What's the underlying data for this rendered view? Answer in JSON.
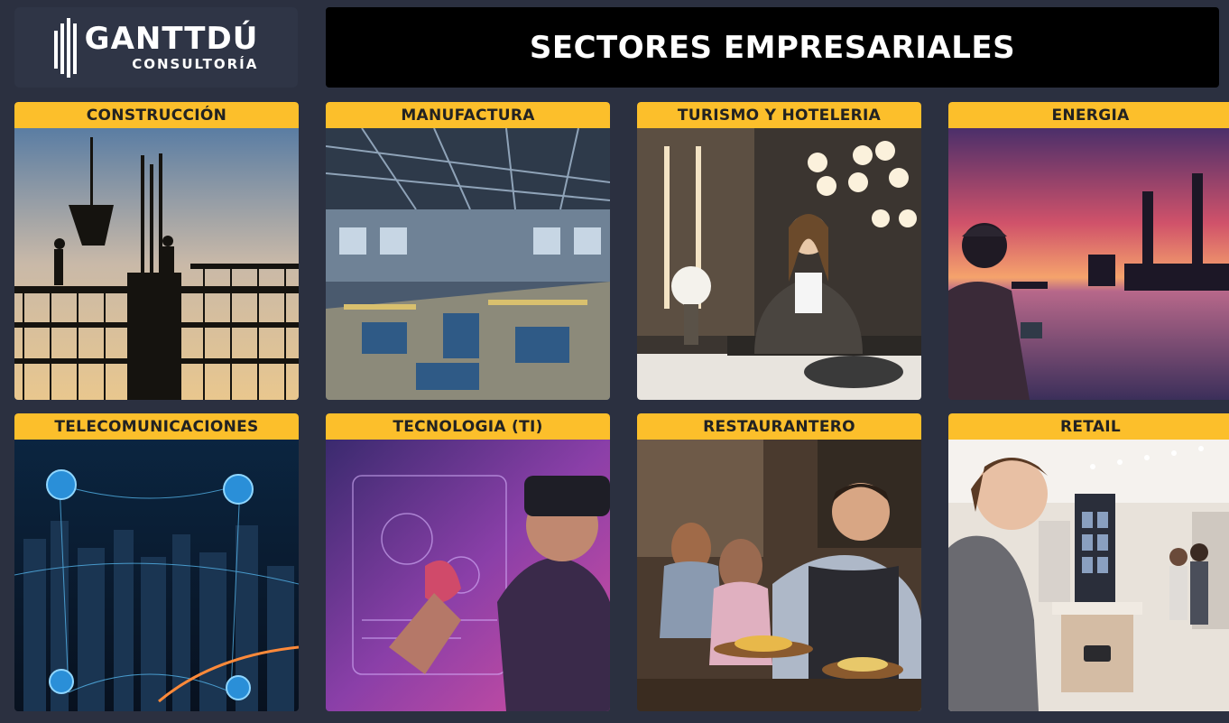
{
  "logo": {
    "name": "GANTTDÚ",
    "subtitle": "CONSULTORÍA"
  },
  "title": "SECTORES EMPRESARIALES",
  "sectors": [
    {
      "label": "CONSTRUCCIÓN",
      "icon": "construction-image"
    },
    {
      "label": "MANUFACTURA",
      "icon": "manufacturing-image"
    },
    {
      "label": "TURISMO Y HOTELERIA",
      "icon": "hotel-image"
    },
    {
      "label": "ENERGIA",
      "icon": "energy-image"
    },
    {
      "label": "TELECOMUNICACIONES",
      "icon": "telecom-image"
    },
    {
      "label": "TECNOLOGIA (TI)",
      "icon": "technology-image"
    },
    {
      "label": "RESTAURANTERO",
      "icon": "restaurant-image"
    },
    {
      "label": "RETAIL",
      "icon": "retail-image"
    }
  ],
  "colors": {
    "background": "#2b3040",
    "header_accent": "#fcbf2b",
    "title_bg": "#000000"
  }
}
